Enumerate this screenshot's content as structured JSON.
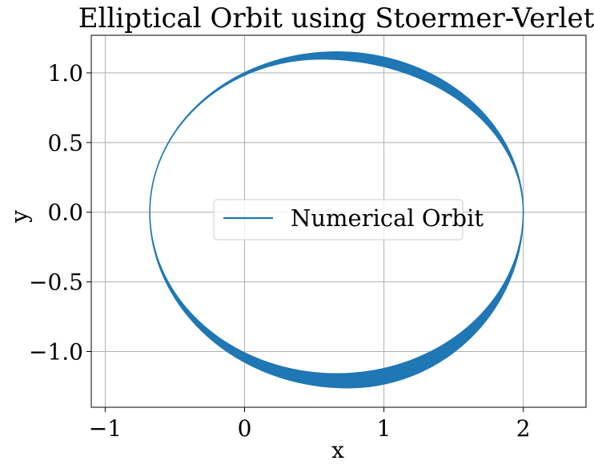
{
  "chart_data": {
    "type": "line",
    "title": "Elliptical Orbit using Stoermer-Verlet",
    "xlabel": "x",
    "ylabel": "y",
    "xlim": [
      -1.1,
      2.45
    ],
    "ylim": [
      -1.4,
      1.27
    ],
    "xticks": [
      -1,
      0,
      1,
      2
    ],
    "xtick_labels": [
      "−1",
      "0",
      "1",
      "2"
    ],
    "yticks": [
      -1.0,
      -0.5,
      0.0,
      0.5,
      1.0
    ],
    "ytick_labels": [
      "−1.0",
      "−0.5",
      "0.0",
      "0.5",
      "1.0"
    ],
    "grid": true,
    "legend": {
      "position": "center",
      "entries": [
        "Numerical Orbit"
      ]
    },
    "series": [
      {
        "name": "Numerical Orbit",
        "color": "#1f77b4",
        "orbit": {
          "x_min": -0.68,
          "x_max": 2.0,
          "y_top_inner": 1.1,
          "y_top_outer": 1.15,
          "y_bottom_inner": -1.16,
          "y_bottom_outer": -1.26,
          "x_at_top_inner": 0.55,
          "x_at_top_outer": 0.66,
          "x_at_bottom_inner": 0.66,
          "x_at_bottom_outer": 0.74,
          "start": [
            2.0,
            0.0
          ]
        }
      }
    ]
  }
}
